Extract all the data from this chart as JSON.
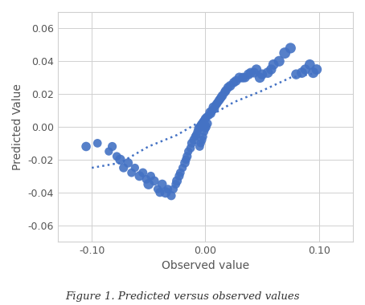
{
  "title": "",
  "xlabel": "Observed value",
  "ylabel": "Predicted Value",
  "caption": "Figure 1. Predicted versus observed values",
  "xlim": [
    -0.13,
    0.13
  ],
  "ylim": [
    -0.07,
    0.07
  ],
  "xticks": [
    -0.1,
    0.0,
    0.1
  ],
  "yticks": [
    -0.06,
    -0.04,
    -0.02,
    0.0,
    0.02,
    0.04,
    0.06
  ],
  "dot_color": "#4472C4",
  "trend_color": "#4472C4",
  "background_color": "#ffffff",
  "scatter_x": [
    -0.105,
    -0.095,
    -0.085,
    -0.082,
    -0.078,
    -0.075,
    -0.072,
    -0.068,
    -0.065,
    -0.062,
    -0.058,
    -0.055,
    -0.052,
    -0.05,
    -0.048,
    -0.045,
    -0.042,
    -0.04,
    -0.038,
    -0.035,
    -0.033,
    -0.03,
    -0.028,
    -0.026,
    -0.025,
    -0.023,
    -0.022,
    -0.02,
    -0.018,
    -0.017,
    -0.016,
    -0.015,
    -0.013,
    -0.012,
    -0.01,
    -0.009,
    -0.008,
    -0.007,
    -0.006,
    -0.005,
    -0.004,
    -0.003,
    -0.002,
    -0.001,
    0.0,
    0.001,
    0.0,
    -0.001,
    0.002,
    0.001,
    0.0,
    -0.002,
    -0.003,
    -0.004,
    -0.005,
    0.003,
    0.004,
    0.005,
    0.006,
    0.007,
    0.008,
    0.009,
    0.01,
    0.011,
    0.012,
    0.013,
    0.014,
    0.015,
    0.017,
    0.018,
    0.02,
    0.022,
    0.025,
    0.027,
    0.03,
    0.033,
    0.035,
    0.038,
    0.04,
    0.043,
    0.045,
    0.048,
    0.05,
    0.055,
    0.058,
    0.06,
    0.065,
    0.07,
    0.075,
    0.08,
    0.085,
    0.088,
    0.092,
    0.095,
    0.098
  ],
  "scatter_y": [
    -0.012,
    -0.01,
    -0.015,
    -0.012,
    -0.018,
    -0.02,
    -0.025,
    -0.022,
    -0.028,
    -0.025,
    -0.03,
    -0.028,
    -0.032,
    -0.035,
    -0.03,
    -0.033,
    -0.038,
    -0.04,
    -0.035,
    -0.04,
    -0.038,
    -0.042,
    -0.038,
    -0.035,
    -0.033,
    -0.03,
    -0.028,
    -0.025,
    -0.022,
    -0.02,
    -0.018,
    -0.015,
    -0.013,
    -0.01,
    -0.008,
    -0.006,
    -0.005,
    -0.003,
    -0.001,
    0.0,
    0.001,
    0.002,
    0.003,
    0.004,
    0.005,
    0.006,
    0.001,
    -0.003,
    0.002,
    0.0,
    -0.001,
    -0.006,
    -0.008,
    -0.01,
    -0.012,
    0.007,
    0.009,
    0.008,
    0.01,
    0.012,
    0.011,
    0.013,
    0.014,
    0.015,
    0.016,
    0.017,
    0.018,
    0.019,
    0.021,
    0.022,
    0.024,
    0.025,
    0.027,
    0.028,
    0.03,
    0.03,
    0.03,
    0.032,
    0.033,
    0.033,
    0.035,
    0.03,
    0.032,
    0.033,
    0.035,
    0.038,
    0.04,
    0.045,
    0.048,
    0.032,
    0.033,
    0.035,
    0.038,
    0.033,
    0.035
  ],
  "scatter_sizes": [
    70,
    60,
    55,
    65,
    60,
    80,
    65,
    70,
    60,
    55,
    75,
    65,
    60,
    85,
    60,
    70,
    55,
    65,
    70,
    90,
    60,
    65,
    55,
    60,
    75,
    65,
    60,
    55,
    70,
    60,
    65,
    55,
    60,
    65,
    70,
    55,
    60,
    55,
    65,
    55,
    60,
    55,
    60,
    55,
    65,
    55,
    60,
    55,
    60,
    55,
    60,
    55,
    60,
    55,
    60,
    60,
    65,
    60,
    65,
    70,
    65,
    60,
    65,
    60,
    65,
    65,
    65,
    70,
    65,
    70,
    70,
    75,
    70,
    75,
    80,
    75,
    70,
    80,
    75,
    75,
    80,
    85,
    80,
    85,
    80,
    85,
    90,
    100,
    90,
    80,
    85,
    80,
    85,
    90,
    85
  ],
  "trend_x": [
    -0.1,
    -0.075,
    -0.05,
    -0.025,
    0.0,
    0.025,
    0.05,
    0.075,
    0.1
  ],
  "trend_y": [
    -0.025,
    -0.022,
    -0.012,
    -0.005,
    0.005,
    0.015,
    0.022,
    0.03,
    0.033
  ]
}
